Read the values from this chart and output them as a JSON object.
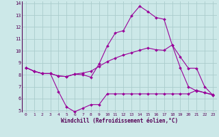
{
  "xlabel": "Windchill (Refroidissement éolien,°C)",
  "x_hours": [
    0,
    1,
    2,
    3,
    4,
    5,
    6,
    7,
    8,
    9,
    10,
    11,
    12,
    13,
    14,
    15,
    16,
    17,
    18,
    19,
    20,
    21,
    22,
    23
  ],
  "line1_y": [
    8.6,
    8.3,
    8.1,
    8.1,
    6.6,
    5.3,
    4.9,
    5.2,
    5.5,
    5.5,
    6.4,
    6.4,
    6.4,
    6.4,
    6.4,
    6.4,
    6.4,
    6.4,
    6.4,
    6.4,
    6.4,
    6.7,
    6.5,
    6.35
  ],
  "line2_y": [
    8.6,
    8.3,
    8.1,
    8.1,
    7.9,
    7.85,
    8.05,
    8.0,
    7.8,
    8.9,
    10.4,
    11.5,
    11.7,
    12.95,
    13.75,
    13.3,
    12.8,
    12.65,
    10.5,
    8.6,
    7.0,
    6.65,
    6.5,
    6.3
  ],
  "line3_y": [
    8.6,
    8.3,
    8.1,
    8.1,
    7.9,
    7.85,
    8.05,
    8.15,
    8.3,
    8.7,
    9.1,
    9.4,
    9.65,
    9.85,
    10.05,
    10.25,
    10.1,
    10.05,
    10.5,
    9.5,
    8.55,
    8.55,
    7.0,
    6.3
  ],
  "line_color": "#990099",
  "bg_color": "#cce8e8",
  "grid_color": "#aacccc",
  "ylim": [
    5,
    14
  ],
  "yticks": [
    5,
    6,
    7,
    8,
    9,
    10,
    11,
    12,
    13,
    14
  ]
}
